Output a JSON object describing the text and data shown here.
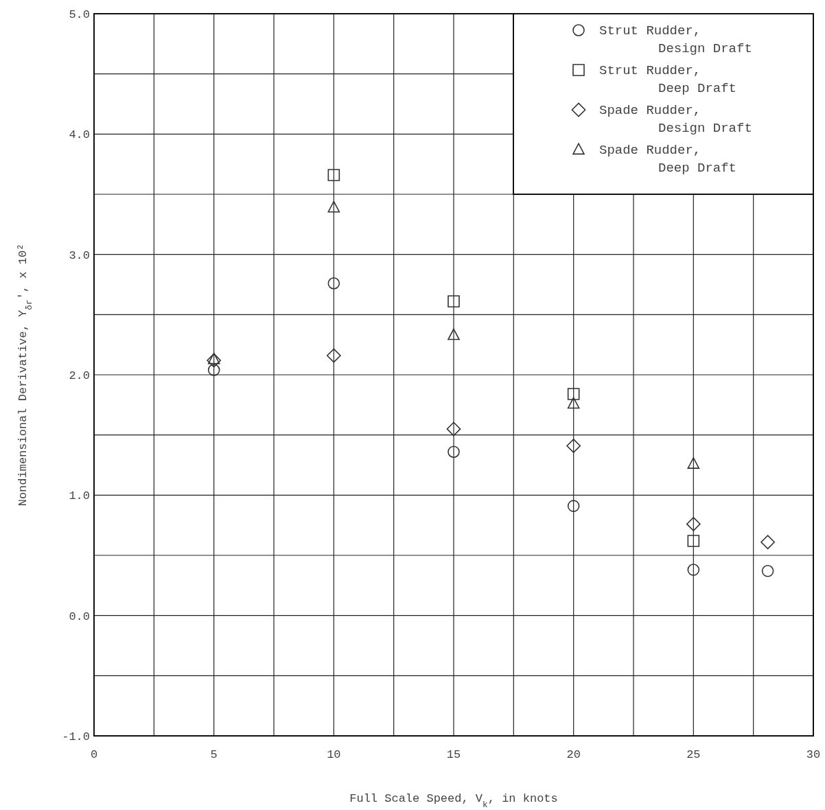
{
  "chart_data": {
    "type": "scatter",
    "xlabel": "Full Scale Speed, V$_{k}$, in knots",
    "ylabel": "Nondimensional Derivative, Y$_{δr}$', x 10²",
    "xlim": [
      0,
      30
    ],
    "ylim": [
      -1,
      5
    ],
    "xticks": [
      0,
      {
        "value": 2.5,
        "label": null
      },
      5,
      {
        "value": 7.5,
        "label": null
      },
      10,
      {
        "value": 12.5,
        "label": null
      },
      15,
      {
        "value": 17.5,
        "label": null
      },
      20,
      {
        "value": 22.5,
        "label": null
      },
      25,
      {
        "value": 27.5,
        "label": null
      },
      30
    ],
    "yticks": [
      {
        "value": -1,
        "label": "-1.0"
      },
      {
        "value": -0.5,
        "label": null
      },
      {
        "value": 0,
        "label": "0.0"
      },
      {
        "value": 0.5,
        "label": null
      },
      {
        "value": 1,
        "label": "1.0"
      },
      {
        "value": 1.5,
        "label": null
      },
      {
        "value": 2,
        "label": "2.0"
      },
      {
        "value": 2.5,
        "label": null
      },
      {
        "value": 3,
        "label": "3.0"
      },
      {
        "value": 3.5,
        "label": null
      },
      {
        "value": 4,
        "label": "4.0"
      },
      {
        "value": 4.5,
        "label": null
      },
      {
        "value": 5,
        "label": "5.0"
      }
    ],
    "grid": true,
    "legend": "top right",
    "series": [
      {
        "name": "Strut Rudder, Design Draft",
        "color": "#333333",
        "marker": "circle",
        "x": [
          5,
          10,
          15,
          20,
          25,
          28.1
        ],
        "values": [
          2.04,
          2.76,
          1.36,
          0.91,
          0.38,
          0.37
        ]
      },
      {
        "name": "Strut Rudder, Deep Draft",
        "color": "#333333",
        "marker": "square",
        "x": [
          10,
          15,
          20,
          25
        ],
        "values": [
          3.66,
          2.61,
          1.84,
          0.62
        ]
      },
      {
        "name": "Spade Rudder, Design Draft",
        "color": "#333333",
        "marker": "diamond",
        "x": [
          5,
          10,
          15,
          20,
          25,
          28.1
        ],
        "values": [
          2.12,
          2.16,
          1.55,
          1.41,
          0.76,
          0.61
        ]
      },
      {
        "name": "Spade Rudder, Deep Draft",
        "color": "#333333",
        "marker": "triangle",
        "x": [
          5,
          10,
          15,
          20,
          25
        ],
        "values": [
          2.13,
          3.39,
          2.33,
          1.76,
          1.26
        ]
      }
    ]
  }
}
